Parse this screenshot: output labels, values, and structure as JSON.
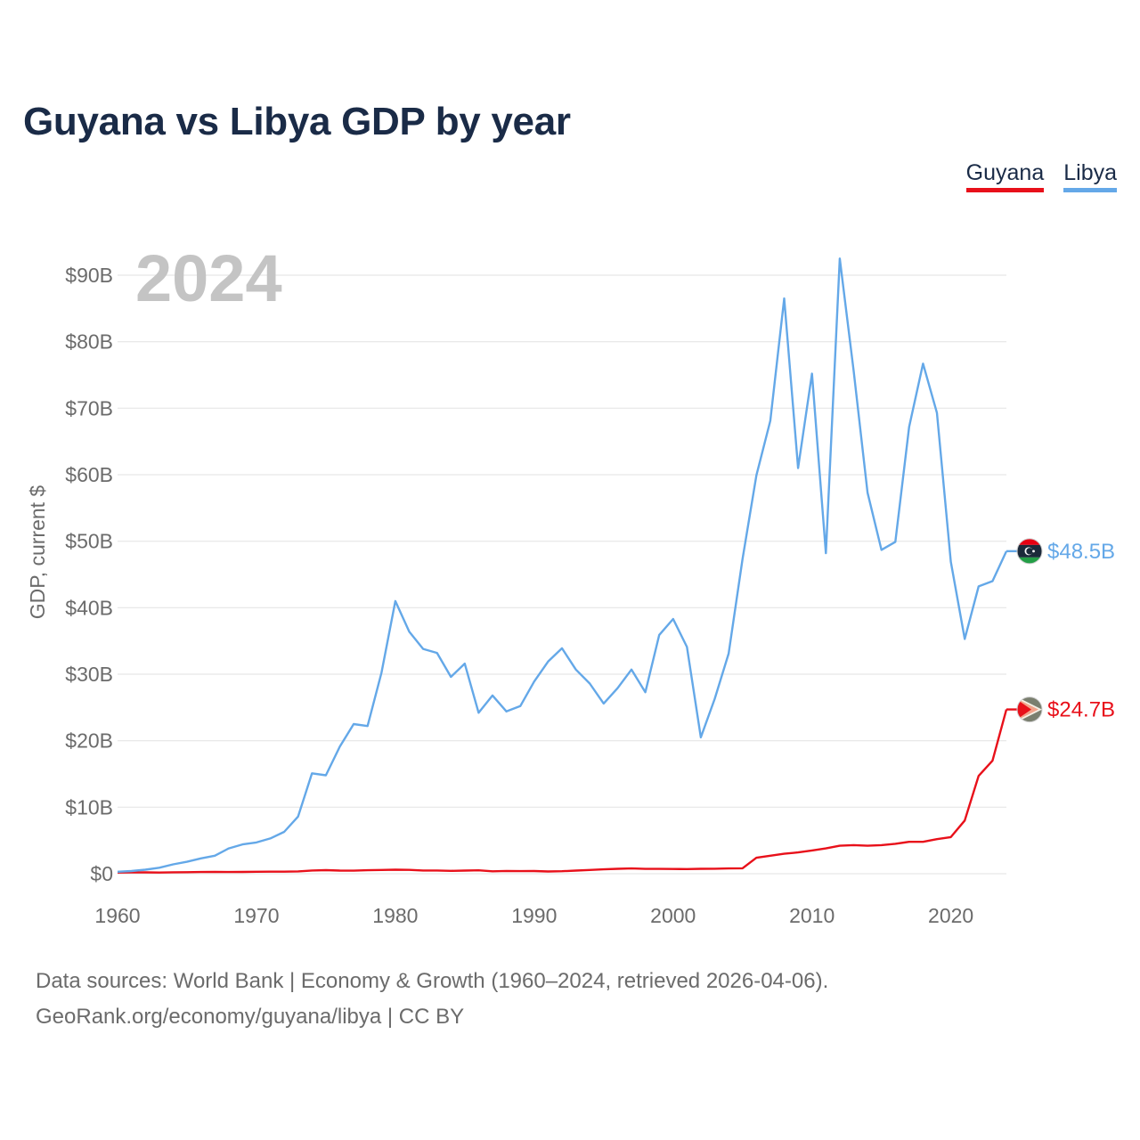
{
  "page": {
    "title": "Guyana vs Libya GDP by year",
    "source_line1": "Data sources: World Bank | Economy & Growth (1960–2024, retrieved 2026-04-06).",
    "source_line2": "GeoRank.org/economy/guyana/libya | CC BY"
  },
  "legend": {
    "guyana_label": "Guyana",
    "libya_label": "Libya"
  },
  "colors": {
    "guyana": "#e8101a",
    "libya": "#64a8e8",
    "grid": "#e6e6e6",
    "year_watermark": "#c4c4c4"
  },
  "chart_data": {
    "type": "line",
    "title": "Guyana vs Libya GDP by year",
    "xlabel": "",
    "ylabel": "GDP, current $",
    "year_label": "2024",
    "xlim": [
      1960,
      2024
    ],
    "ylim": [
      0,
      90
    ],
    "x_ticks": [
      1960,
      1970,
      1980,
      1990,
      2000,
      2010,
      2020
    ],
    "y_ticks": [
      0,
      10,
      20,
      30,
      40,
      50,
      60,
      70,
      80,
      90
    ],
    "y_tick_labels": [
      "$0",
      "$10B",
      "$20B",
      "$30B",
      "$40B",
      "$50B",
      "$60B",
      "$70B",
      "$80B",
      "$90B"
    ],
    "grid": true,
    "legend_position": "top-right",
    "x": [
      1960,
      1961,
      1962,
      1963,
      1964,
      1965,
      1966,
      1967,
      1968,
      1969,
      1970,
      1971,
      1972,
      1973,
      1974,
      1975,
      1976,
      1977,
      1978,
      1979,
      1980,
      1981,
      1982,
      1983,
      1984,
      1985,
      1986,
      1987,
      1988,
      1989,
      1990,
      1991,
      1992,
      1993,
      1994,
      1995,
      1996,
      1997,
      1998,
      1999,
      2000,
      2001,
      2002,
      2003,
      2004,
      2005,
      2006,
      2007,
      2008,
      2009,
      2010,
      2011,
      2012,
      2013,
      2014,
      2015,
      2016,
      2017,
      2018,
      2019,
      2020,
      2021,
      2022,
      2023,
      2024
    ],
    "series": [
      {
        "name": "Guyana",
        "end_label": "$24.7B",
        "values": [
          0.17,
          0.19,
          0.2,
          0.18,
          0.21,
          0.23,
          0.25,
          0.27,
          0.25,
          0.27,
          0.3,
          0.31,
          0.31,
          0.35,
          0.48,
          0.53,
          0.47,
          0.45,
          0.52,
          0.56,
          0.6,
          0.57,
          0.48,
          0.48,
          0.43,
          0.47,
          0.51,
          0.36,
          0.41,
          0.39,
          0.4,
          0.33,
          0.37,
          0.47,
          0.56,
          0.65,
          0.73,
          0.79,
          0.72,
          0.72,
          0.71,
          0.7,
          0.73,
          0.75,
          0.79,
          0.82,
          2.4,
          2.7,
          3.0,
          3.2,
          3.5,
          3.8,
          4.2,
          4.3,
          4.2,
          4.3,
          4.5,
          4.8,
          4.8,
          5.2,
          5.5,
          8.0,
          14.7,
          17.0,
          24.7
        ]
      },
      {
        "name": "Libya",
        "end_label": "$48.5B",
        "values": [
          0.3,
          0.4,
          0.6,
          0.9,
          1.4,
          1.8,
          2.3,
          2.7,
          3.8,
          4.4,
          4.7,
          5.3,
          6.3,
          8.6,
          15.1,
          14.8,
          19.1,
          22.5,
          22.2,
          30.2,
          41.0,
          36.4,
          33.8,
          33.2,
          29.6,
          31.6,
          24.2,
          26.8,
          24.4,
          25.2,
          28.9,
          31.9,
          33.9,
          30.7,
          28.6,
          25.6,
          27.9,
          30.7,
          27.3,
          35.9,
          38.3,
          34.1,
          20.5,
          26.3,
          33.1,
          47.3,
          59.9,
          68.1,
          86.5,
          61.0,
          75.2,
          48.2,
          92.5,
          75.6,
          57.3,
          48.7,
          49.9,
          67.2,
          76.7,
          69.3,
          46.9,
          35.3,
          43.2,
          44.0,
          48.5
        ]
      }
    ]
  }
}
